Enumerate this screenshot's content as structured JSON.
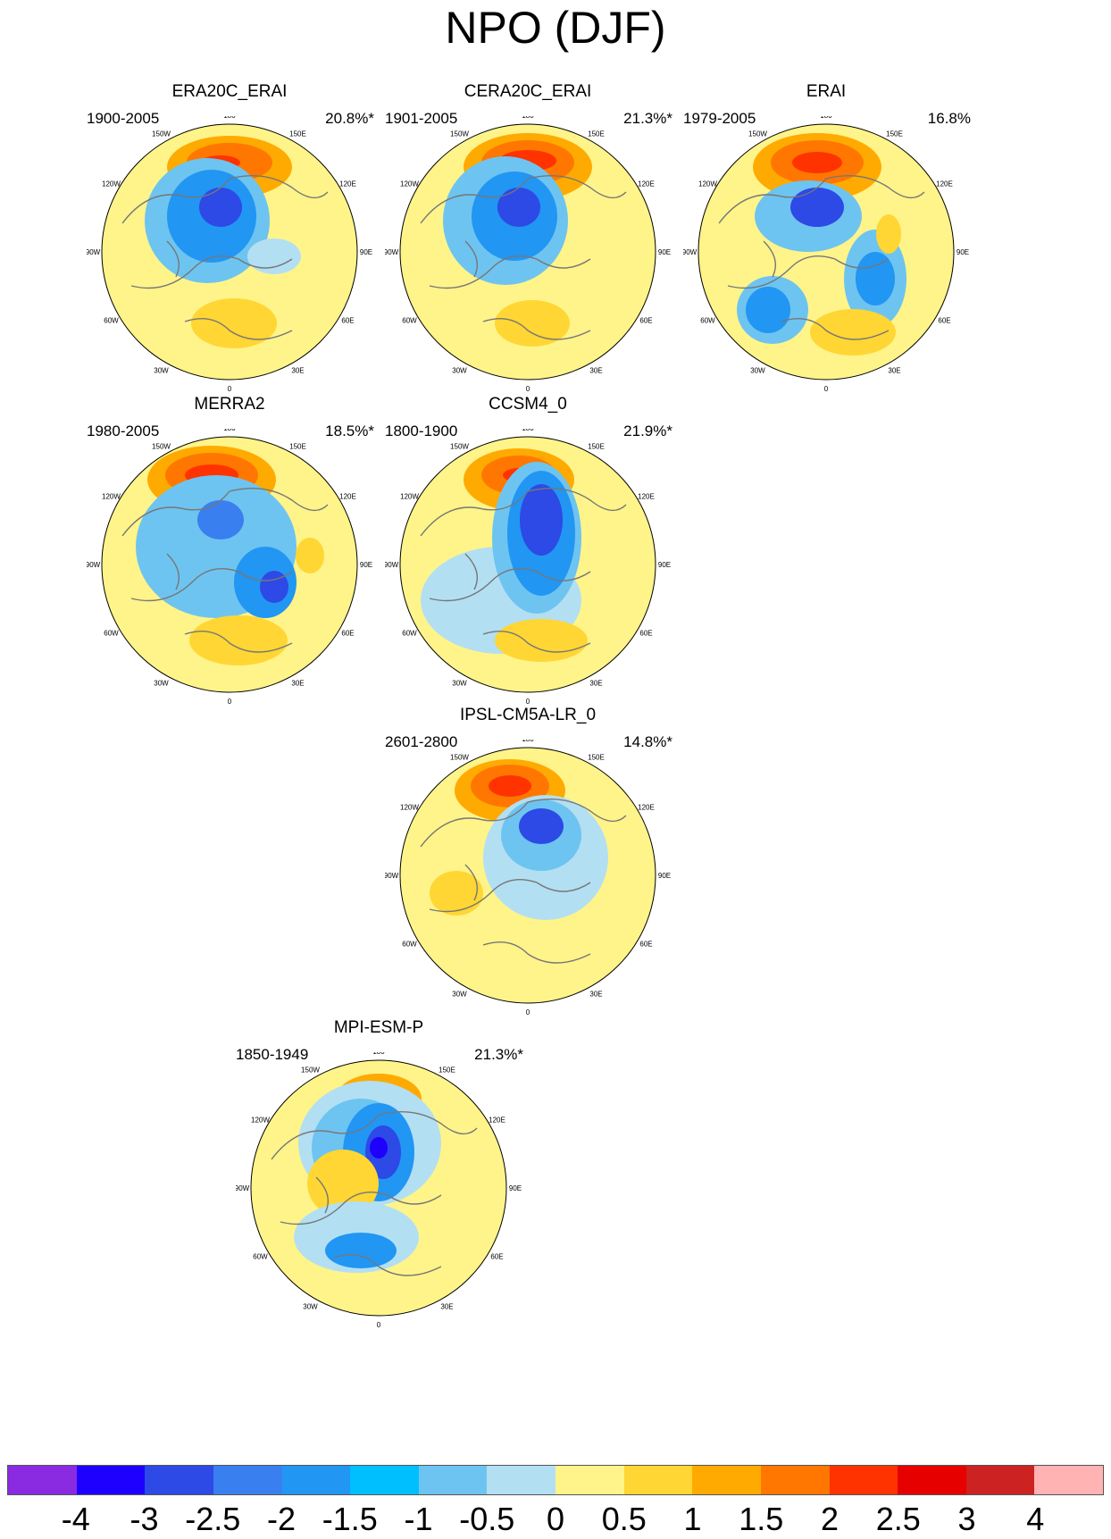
{
  "title": "NPO (DJF)",
  "lon_labels": [
    "180",
    "150E",
    "120E",
    "90E",
    "60E",
    "30E",
    "0",
    "30W",
    "60W",
    "90W",
    "120W",
    "150W"
  ],
  "panels": [
    {
      "name": "ERA20C_ERAI",
      "period": "1900-2005",
      "variance": "20.8%*"
    },
    {
      "name": "CERA20C_ERAI",
      "period": "1901-2005",
      "variance": "21.3%*"
    },
    {
      "name": "ERAI",
      "period": "1979-2005",
      "variance": "16.8%"
    },
    {
      "name": "MERRA2",
      "period": "1980-2005",
      "variance": "18.5%*"
    },
    {
      "name": "CCSM4_0",
      "period": "1800-1900",
      "variance": "21.9%*"
    },
    {
      "name": "IPSL-CM5A-LR_0",
      "period": "2601-2800",
      "variance": "14.8%*"
    },
    {
      "name": "MPI-ESM-P",
      "period": "1850-1949",
      "variance": "21.3%*"
    }
  ],
  "colorbar": {
    "colors": [
      "#8a2be2",
      "#1e00ff",
      "#2d49e6",
      "#3a7ff0",
      "#2196f3",
      "#00bfff",
      "#6ec4f0",
      "#b3dff2",
      "#fff48a",
      "#ffd633",
      "#ffaa00",
      "#ff7700",
      "#ff3300",
      "#e60000",
      "#cc2222",
      "#ffb3b3"
    ],
    "labels": [
      "-4",
      "-3",
      "-2.5",
      "-2",
      "-1.5",
      "-1",
      "-0.5",
      "0",
      "0.5",
      "1",
      "1.5",
      "2",
      "2.5",
      "3",
      "4"
    ]
  }
}
